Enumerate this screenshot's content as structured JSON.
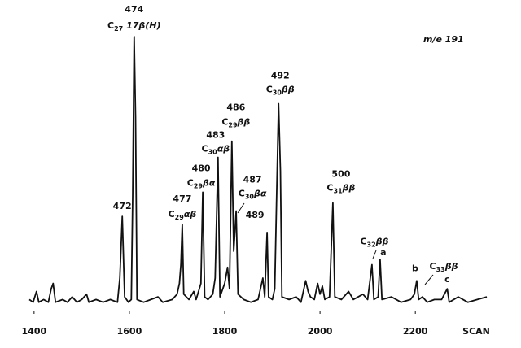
{
  "chart_data": {
    "type": "line",
    "annotation": "m/e 191",
    "x_label": "SCAN",
    "color": "#111111",
    "xlim": [
      1390,
      2350
    ],
    "ylim": [
      0,
      100
    ],
    "xticks": [
      1400,
      1600,
      1800,
      2000,
      2200
    ],
    "x": [
      1390,
      1398,
      1405,
      1410,
      1420,
      1430,
      1436,
      1440,
      1445,
      1460,
      1470,
      1480,
      1490,
      1500,
      1510,
      1515,
      1530,
      1545,
      1560,
      1575,
      1580,
      1585,
      1590,
      1598,
      1604,
      1607,
      1610,
      1613,
      1616,
      1630,
      1645,
      1660,
      1670,
      1690,
      1700,
      1705,
      1708,
      1711,
      1714,
      1725,
      1735,
      1740,
      1750,
      1754,
      1758,
      1765,
      1775,
      1780,
      1786,
      1790,
      1800,
      1806,
      1810,
      1815,
      1819,
      1824,
      1828,
      1840,
      1855,
      1870,
      1880,
      1884,
      1889,
      1892,
      1900,
      1905,
      1909,
      1913,
      1917,
      1920,
      1935,
      1950,
      1960,
      1970,
      1975,
      1980,
      1988,
      1995,
      2000,
      2005,
      2010,
      2020,
      2027,
      2031,
      2045,
      2060,
      2070,
      2090,
      2100,
      2109,
      2113,
      2122,
      2126,
      2130,
      2150,
      2170,
      2190,
      2198,
      2203,
      2207,
      2215,
      2225,
      2240,
      2255,
      2267,
      2271,
      2290,
      2310,
      2330,
      2350
    ],
    "values": [
      2,
      1,
      5,
      1,
      2,
      1,
      6,
      8,
      1,
      2,
      1,
      3,
      1,
      2,
      4,
      1,
      2,
      1,
      2,
      1,
      10,
      33,
      3,
      1,
      2,
      40,
      100,
      70,
      2,
      1,
      2,
      3,
      1,
      2,
      4,
      8,
      15,
      30,
      4,
      2,
      5,
      2,
      8,
      42,
      3,
      2,
      4,
      10,
      55,
      3,
      8,
      14,
      6,
      61,
      20,
      35,
      4,
      2,
      1,
      2,
      10,
      3,
      27,
      3,
      2,
      6,
      40,
      75,
      50,
      3,
      2,
      3,
      1,
      9,
      5,
      3,
      2,
      8,
      4,
      7,
      2,
      3,
      38,
      3,
      2,
      5,
      2,
      4,
      2,
      15,
      2,
      3,
      17,
      2,
      3,
      1,
      2,
      4,
      9,
      2,
      3,
      1,
      2,
      2,
      6,
      1,
      3,
      1,
      2,
      3
    ],
    "peaks": [
      {
        "x": 1585,
        "label": "472"
      },
      {
        "x": 1610,
        "label": "474",
        "compound": {
          "base": "C",
          "sub": "27",
          "suffix": " 17β(H)"
        }
      },
      {
        "x": 1711,
        "label": "477",
        "compound": {
          "base": "C",
          "sub": "29",
          "suffix": "αβ"
        }
      },
      {
        "x": 1754,
        "label": "480",
        "compound": {
          "base": "C",
          "sub": "29",
          "suffix": "βα"
        }
      },
      {
        "x": 1786,
        "label": "483",
        "compound": {
          "base": "C",
          "sub": "30",
          "suffix": "αβ"
        }
      },
      {
        "x": 1815,
        "label": "486",
        "compound": {
          "base": "C",
          "sub": "29",
          "suffix": "ββ"
        }
      },
      {
        "x": 1824,
        "label": "487",
        "compound": {
          "base": "C",
          "sub": "30",
          "suffix": "βα"
        }
      },
      {
        "x": 1889,
        "label": "489"
      },
      {
        "x": 1913,
        "label": "492",
        "compound": {
          "base": "C",
          "sub": "30",
          "suffix": "ββ"
        }
      },
      {
        "x": 2027,
        "label": "500",
        "compound": {
          "base": "C",
          "sub": "31",
          "suffix": "ββ"
        }
      },
      {
        "x": 2109,
        "compound": {
          "base": "C",
          "sub": "32",
          "suffix": "ββ"
        }
      },
      {
        "x": 2126,
        "label": "a"
      },
      {
        "x": 2203,
        "label": "b"
      },
      {
        "x": 2215,
        "compound": {
          "base": "C",
          "sub": "33",
          "suffix": "ββ"
        }
      },
      {
        "x": 2267,
        "label": "c"
      }
    ]
  }
}
